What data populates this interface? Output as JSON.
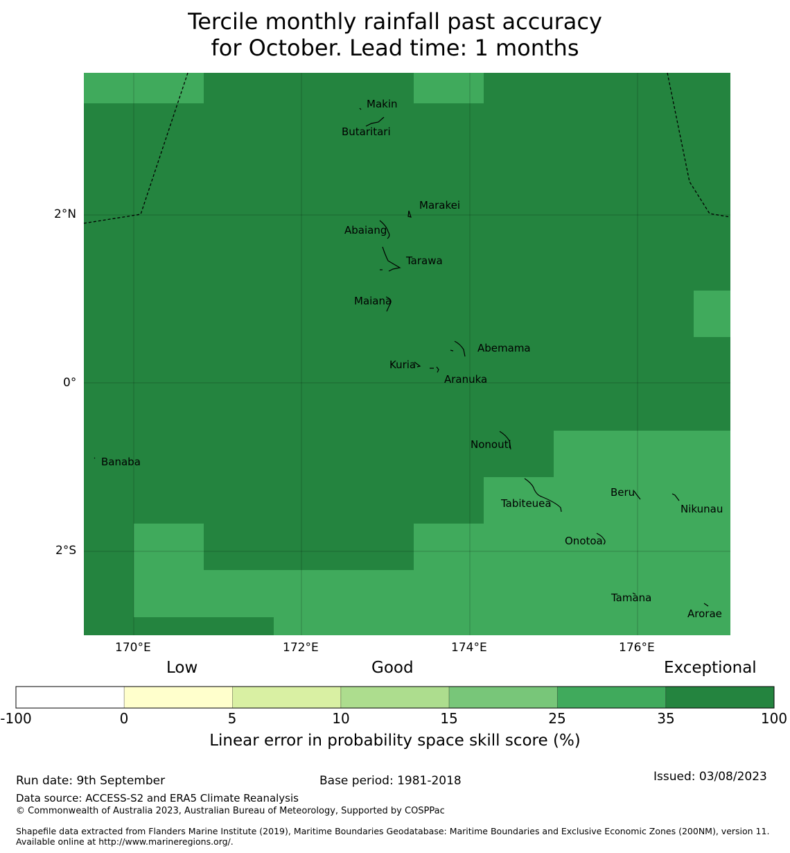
{
  "title_line1": "Tercile monthly rainfall past accuracy",
  "title_line2": "for October. Lead time: 1 months",
  "map": {
    "lat_labels": [
      "2°N",
      "0°",
      "2°S"
    ],
    "lon_labels": [
      "170°E",
      "172°E",
      "174°E",
      "176°E"
    ],
    "islands": [
      {
        "name": "Makin"
      },
      {
        "name": "Butaritari"
      },
      {
        "name": "Marakei"
      },
      {
        "name": "Abaiang"
      },
      {
        "name": "Tarawa"
      },
      {
        "name": "Maiana"
      },
      {
        "name": "Abemama"
      },
      {
        "name": "Kuria"
      },
      {
        "name": "Aranuka"
      },
      {
        "name": "Nonouti"
      },
      {
        "name": "Banaba"
      },
      {
        "name": "Beru"
      },
      {
        "name": "Tabiteuea"
      },
      {
        "name": "Nikunau"
      },
      {
        "name": "Onotoa"
      },
      {
        "name": "Tamana"
      },
      {
        "name": "Arorae"
      }
    ],
    "colors": {
      "exceptional": "#24843f",
      "very_good": "#40aa5c"
    }
  },
  "colorbar": {
    "category_labels": [
      "Low",
      "Good",
      "Exceptional"
    ],
    "ticks": [
      "-100",
      "0",
      "5",
      "10",
      "15",
      "25",
      "35",
      "100"
    ],
    "colors": [
      "#ffffff",
      "#ffffcc",
      "#d9f0a3",
      "#addd8e",
      "#78c679",
      "#40aa5c",
      "#24843f"
    ],
    "label": "Linear error in probability space skill score (%)"
  },
  "footer": {
    "run_date": "Run date: 9th September",
    "base_period": "Base period: 1981-2018",
    "issued": "Issued: 03/08/2023",
    "data_source": "Data source: ACCESS-S2 and ERA5 Climate Reanalysis",
    "copyright": "© Commonwealth of Australia 2023, Australian Bureau of Meteorology, Supported by COSPPac",
    "shapefile": "Shapefile data extracted from Flanders Marine Institute (2019), Maritime Boundaries Geodatabase: Maritime Boundaries and Exclusive Economic Zones (200NM), version 11. Available online at http://www.marineregions.org/."
  }
}
